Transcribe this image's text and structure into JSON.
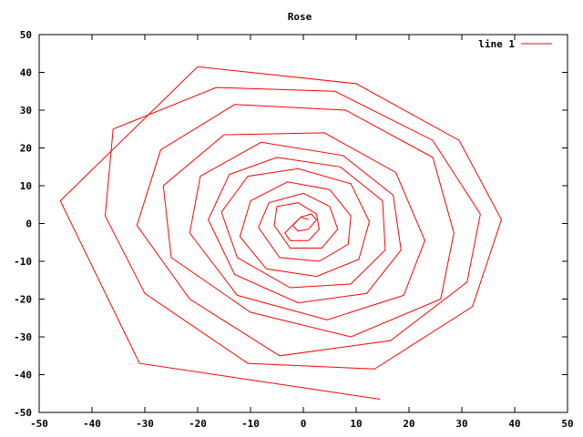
{
  "chart_data": {
    "type": "line",
    "title": "Rose",
    "xlabel": "",
    "ylabel": "",
    "xlim": [
      -50,
      50
    ],
    "ylim": [
      -50,
      50
    ],
    "xticks": [
      -50,
      -40,
      -30,
      -20,
      -10,
      0,
      10,
      20,
      30,
      40,
      50
    ],
    "yticks": [
      -50,
      -40,
      -30,
      -20,
      -10,
      0,
      10,
      20,
      30,
      40,
      50
    ],
    "grid": false,
    "legend_position": "top-right",
    "series": [
      {
        "name": "line 1",
        "color": "#ff0000",
        "points": [
          [
            1.0,
            1.0
          ],
          [
            -0.5,
            1.7
          ],
          [
            -2.0,
            -0.5
          ],
          [
            -1.0,
            -2.0
          ],
          [
            1.0,
            -1.5
          ],
          [
            2.5,
            1.0
          ],
          [
            1.5,
            2.5
          ],
          [
            -0.5,
            1.7
          ],
          [
            -3.5,
            -2.5
          ],
          [
            -2.5,
            -4.5
          ],
          [
            1.0,
            -4.5
          ],
          [
            3.0,
            -1.5
          ],
          [
            2.5,
            2.5
          ],
          [
            -1.0,
            5.5
          ],
          [
            -5.0,
            4.5
          ],
          [
            -5.5,
            -0.5
          ],
          [
            -2.5,
            -6.5
          ],
          [
            3.5,
            -6.5
          ],
          [
            6.5,
            -1.5
          ],
          [
            5.0,
            4.5
          ],
          [
            0.0,
            8.0
          ],
          [
            -6.5,
            5.5
          ],
          [
            -8.5,
            -1.0
          ],
          [
            -4.5,
            -9.0
          ],
          [
            3.0,
            -10.0
          ],
          [
            8.5,
            -5.5
          ],
          [
            9.0,
            2.0
          ],
          [
            5.0,
            9.0
          ],
          [
            -3.0,
            11.0
          ],
          [
            -10.0,
            6.0
          ],
          [
            -12.0,
            -3.5
          ],
          [
            -7.0,
            -12.0
          ],
          [
            2.5,
            -14.0
          ],
          [
            10.5,
            -9.5
          ],
          [
            12.5,
            0.5
          ],
          [
            9.0,
            10.5
          ],
          [
            -1.0,
            14.5
          ],
          [
            -10.5,
            12.5
          ],
          [
            -15.5,
            3.0
          ],
          [
            -12.5,
            -9.0
          ],
          [
            -2.5,
            -17.0
          ],
          [
            9.0,
            -16.0
          ],
          [
            15.5,
            -7.0
          ],
          [
            15.0,
            6.0
          ],
          [
            7.0,
            15.0
          ],
          [
            -5.0,
            17.5
          ],
          [
            -14.0,
            13.0
          ],
          [
            -18.0,
            1.0
          ],
          [
            -13.0,
            -13.5
          ],
          [
            -1.0,
            -21.0
          ],
          [
            12.0,
            -18.5
          ],
          [
            18.5,
            -7.0
          ],
          [
            17.0,
            7.5
          ],
          [
            7.5,
            18.0
          ],
          [
            -8.0,
            21.5
          ],
          [
            -19.5,
            12.5
          ],
          [
            -21.5,
            -2.5
          ],
          [
            -12.5,
            -19.0
          ],
          [
            4.5,
            -25.5
          ],
          [
            19.0,
            -19.0
          ],
          [
            23.0,
            -4.5
          ],
          [
            17.5,
            13.5
          ],
          [
            4.0,
            24.0
          ],
          [
            -15.0,
            23.5
          ],
          [
            -26.5,
            10.0
          ],
          [
            -25.0,
            -9.0
          ],
          [
            -10.0,
            -23.5
          ],
          [
            9.0,
            -30.0
          ],
          [
            26.0,
            -20.0
          ],
          [
            28.5,
            -2.5
          ],
          [
            24.5,
            17.5
          ],
          [
            8.0,
            30.0
          ],
          [
            -13.0,
            31.5
          ],
          [
            -27.0,
            19.5
          ],
          [
            -31.5,
            -0.5
          ],
          [
            -21.5,
            -20.0
          ],
          [
            -4.5,
            -35.0
          ],
          [
            16.5,
            -31.0
          ],
          [
            31.0,
            -15.5
          ],
          [
            33.5,
            2.5
          ],
          [
            24.5,
            22.0
          ],
          [
            6.0,
            35.0
          ],
          [
            -16.5,
            36.0
          ],
          [
            -36.0,
            25.0
          ],
          [
            -37.5,
            2.0
          ],
          [
            -30.0,
            -18.5
          ],
          [
            -10.5,
            -37.0
          ],
          [
            13.5,
            -38.5
          ],
          [
            32.0,
            -22.0
          ],
          [
            37.5,
            1.0
          ],
          [
            29.5,
            22.0
          ],
          [
            10.0,
            37.0
          ],
          [
            -20.0,
            41.5
          ],
          [
            -46.0,
            6.0
          ],
          [
            -31.0,
            -37.0
          ],
          [
            14.5,
            -46.5
          ]
        ]
      }
    ]
  }
}
